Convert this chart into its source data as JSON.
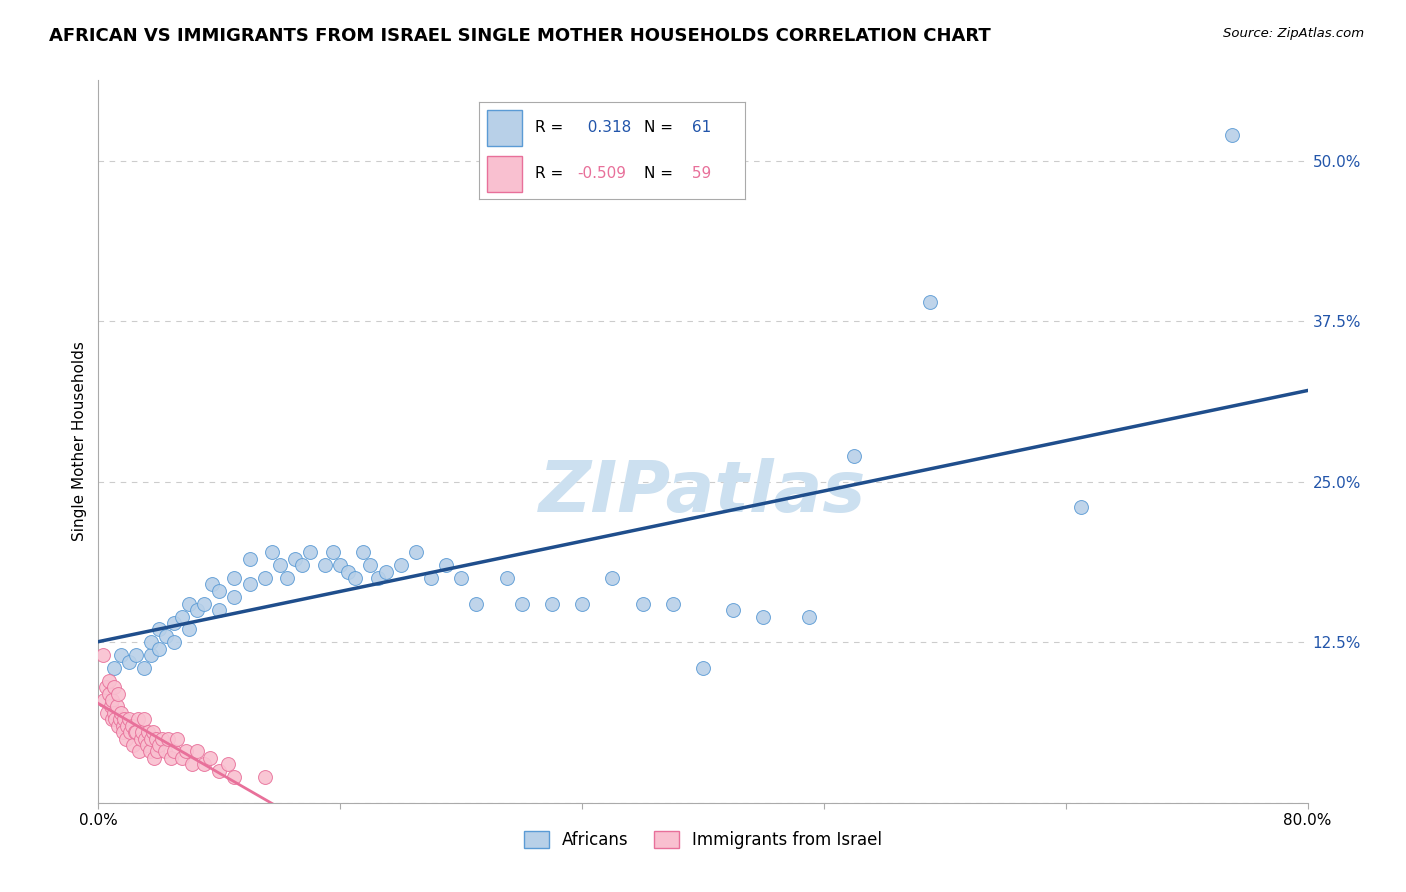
{
  "title": "AFRICAN VS IMMIGRANTS FROM ISRAEL SINGLE MOTHER HOUSEHOLDS CORRELATION CHART",
  "source": "Source: ZipAtlas.com",
  "ylabel": "Single Mother Households",
  "xlim": [
    0.0,
    0.8
  ],
  "ylim": [
    0.0,
    0.5625
  ],
  "yticks": [
    0.0,
    0.125,
    0.25,
    0.375,
    0.5
  ],
  "ytick_labels": [
    "",
    "12.5%",
    "25.0%",
    "37.5%",
    "50.0%"
  ],
  "xticks": [
    0.0,
    0.16,
    0.32,
    0.48,
    0.64,
    0.8
  ],
  "xtick_labels": [
    "0.0%",
    "",
    "",
    "",
    "",
    "80.0%"
  ],
  "gridline_color": "#cccccc",
  "background_color": "#ffffff",
  "watermark": "ZIPatlas",
  "africans_color": "#b8d0e8",
  "africans_edge": "#5b9bd5",
  "africans_line": "#1f4e8c",
  "africans_R": 0.318,
  "africans_N": 61,
  "africans_x": [
    0.01,
    0.015,
    0.02,
    0.025,
    0.03,
    0.035,
    0.035,
    0.04,
    0.04,
    0.045,
    0.05,
    0.05,
    0.055,
    0.06,
    0.06,
    0.065,
    0.07,
    0.075,
    0.08,
    0.08,
    0.09,
    0.09,
    0.1,
    0.1,
    0.11,
    0.115,
    0.12,
    0.125,
    0.13,
    0.135,
    0.14,
    0.15,
    0.155,
    0.16,
    0.165,
    0.17,
    0.175,
    0.18,
    0.185,
    0.19,
    0.2,
    0.21,
    0.22,
    0.23,
    0.24,
    0.25,
    0.27,
    0.28,
    0.3,
    0.32,
    0.34,
    0.36,
    0.38,
    0.4,
    0.42,
    0.44,
    0.47,
    0.5,
    0.55,
    0.65,
    0.75
  ],
  "africans_y": [
    0.105,
    0.115,
    0.11,
    0.115,
    0.105,
    0.115,
    0.125,
    0.12,
    0.135,
    0.13,
    0.125,
    0.14,
    0.145,
    0.135,
    0.155,
    0.15,
    0.155,
    0.17,
    0.15,
    0.165,
    0.16,
    0.175,
    0.17,
    0.19,
    0.175,
    0.195,
    0.185,
    0.175,
    0.19,
    0.185,
    0.195,
    0.185,
    0.195,
    0.185,
    0.18,
    0.175,
    0.195,
    0.185,
    0.175,
    0.18,
    0.185,
    0.195,
    0.175,
    0.185,
    0.175,
    0.155,
    0.175,
    0.155,
    0.155,
    0.155,
    0.175,
    0.155,
    0.155,
    0.105,
    0.15,
    0.145,
    0.145,
    0.27,
    0.39,
    0.23,
    0.52
  ],
  "israel_color": "#f9c0d0",
  "israel_edge": "#e8709a",
  "israel_line": "#e8709a",
  "israel_R": -0.509,
  "israel_N": 59,
  "israel_x": [
    0.003,
    0.004,
    0.005,
    0.006,
    0.007,
    0.007,
    0.008,
    0.009,
    0.009,
    0.01,
    0.01,
    0.011,
    0.012,
    0.013,
    0.013,
    0.014,
    0.015,
    0.016,
    0.016,
    0.017,
    0.018,
    0.019,
    0.02,
    0.021,
    0.022,
    0.023,
    0.024,
    0.025,
    0.026,
    0.027,
    0.028,
    0.029,
    0.03,
    0.031,
    0.032,
    0.033,
    0.034,
    0.035,
    0.036,
    0.037,
    0.038,
    0.039,
    0.04,
    0.042,
    0.044,
    0.046,
    0.048,
    0.05,
    0.052,
    0.055,
    0.058,
    0.062,
    0.065,
    0.07,
    0.074,
    0.08,
    0.086,
    0.09,
    0.11
  ],
  "israel_y": [
    0.115,
    0.08,
    0.09,
    0.07,
    0.085,
    0.095,
    0.075,
    0.08,
    0.065,
    0.09,
    0.07,
    0.065,
    0.075,
    0.085,
    0.06,
    0.065,
    0.07,
    0.06,
    0.055,
    0.065,
    0.05,
    0.06,
    0.065,
    0.055,
    0.06,
    0.045,
    0.055,
    0.055,
    0.065,
    0.04,
    0.05,
    0.055,
    0.065,
    0.05,
    0.045,
    0.055,
    0.04,
    0.05,
    0.055,
    0.035,
    0.05,
    0.04,
    0.045,
    0.05,
    0.04,
    0.05,
    0.035,
    0.04,
    0.05,
    0.035,
    0.04,
    0.03,
    0.04,
    0.03,
    0.035,
    0.025,
    0.03,
    0.02,
    0.02
  ],
  "tick_color": "#2255aa",
  "title_fontsize": 13,
  "tick_fontsize": 11,
  "ylabel_fontsize": 11,
  "watermark_fontsize": 52,
  "watermark_color": "#cce0f0"
}
